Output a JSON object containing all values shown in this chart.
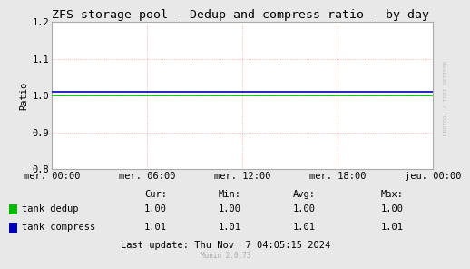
{
  "title": "ZFS storage pool - Dedup and compress ratio - by day",
  "ylabel": "Ratio",
  "background_color": "#e8e8e8",
  "plot_background": "#ffffff",
  "grid_color": "#ff9999",
  "ylim": [
    0.8,
    1.2
  ],
  "yticks": [
    0.8,
    0.9,
    1.0,
    1.1,
    1.2
  ],
  "xtick_labels": [
    "mer. 00:00",
    "mer. 06:00",
    "mer. 12:00",
    "mer. 18:00",
    "jeu. 00:00"
  ],
  "dedup_value": 1.0,
  "compress_value": 1.01,
  "dedup_color": "#00bb00",
  "compress_color": "#0000bb",
  "dedup_label": "tank dedup",
  "compress_label": "tank compress",
  "dedup_stats": {
    "cur": "1.00",
    "min": "1.00",
    "avg": "1.00",
    "max": "1.00"
  },
  "compress_stats": {
    "cur": "1.01",
    "min": "1.01",
    "avg": "1.01",
    "max": "1.01"
  },
  "last_update": "Last update: Thu Nov  7 04:05:15 2024",
  "watermark": "RRDTOOL / TOBI OETIKER",
  "munin_version": "Munin 2.0.73",
  "title_fontsize": 9.5,
  "axis_fontsize": 7.5,
  "legend_fontsize": 7.5
}
